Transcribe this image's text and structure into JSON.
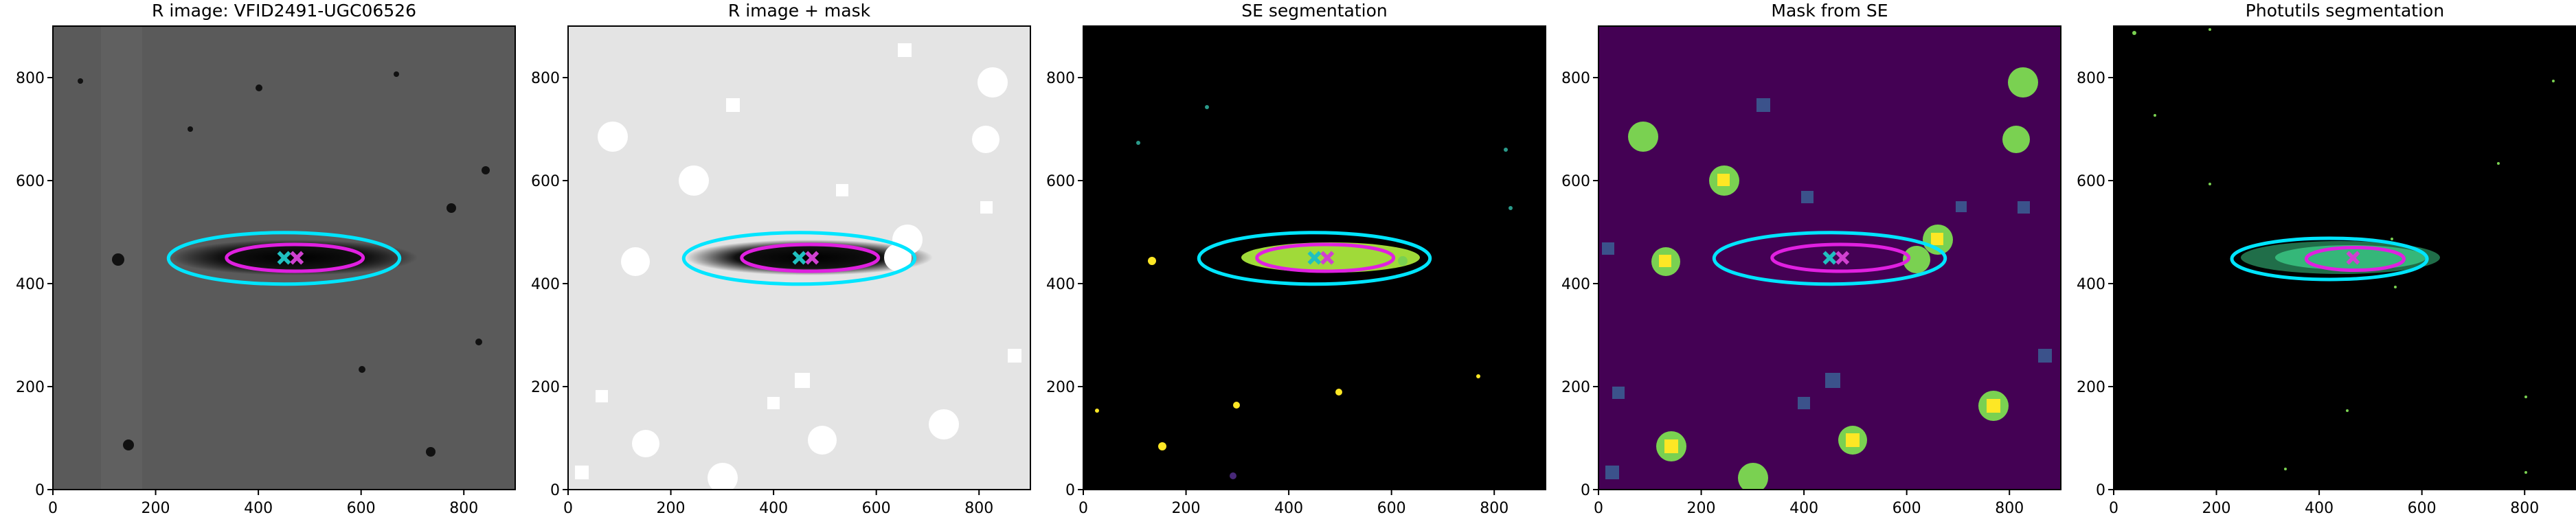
{
  "chart_data": [
    {
      "type": "image",
      "title": "R image: VFID2491-UGC06526",
      "background": "#5a5a5a",
      "xlim": [
        0,
        900
      ],
      "ylim": [
        0,
        900
      ],
      "xticks": [
        0,
        200,
        400,
        600,
        800
      ],
      "yticks": [
        0,
        200,
        400,
        600,
        800
      ],
      "ellipses": [
        {
          "color": "#00e5ff",
          "cx": 450,
          "cy": 449,
          "a": 225,
          "b": 50
        },
        {
          "color": "#e020e0",
          "cx": 471,
          "cy": 450,
          "a": 133,
          "b": 26
        }
      ],
      "markers": [
        {
          "color": "#20c0c0",
          "x": 450,
          "y": 450
        },
        {
          "color": "#d040d0",
          "x": 475,
          "y": 450
        }
      ]
    },
    {
      "type": "image",
      "title": "R image + mask",
      "background": "#e4e4e4",
      "xlim": [
        0,
        900
      ],
      "ylim": [
        0,
        900
      ],
      "xticks": [
        0,
        200,
        400,
        600,
        800
      ],
      "yticks": [
        0,
        200,
        400,
        600,
        800
      ],
      "ellipses": [
        {
          "color": "#00e5ff",
          "cx": 450,
          "cy": 449,
          "a": 225,
          "b": 50
        },
        {
          "color": "#e020e0",
          "cx": 471,
          "cy": 450,
          "a": 133,
          "b": 26
        }
      ],
      "markers": [
        {
          "color": "#20c0c0",
          "x": 450,
          "y": 450
        },
        {
          "color": "#d040d0",
          "x": 475,
          "y": 450
        }
      ]
    },
    {
      "type": "image",
      "title": "SE segmentation",
      "background": "#000000",
      "xlim": [
        0,
        900
      ],
      "ylim": [
        0,
        900
      ],
      "xticks": [
        0,
        200,
        400,
        600,
        800
      ],
      "yticks": [
        0,
        200,
        400,
        600,
        800
      ],
      "ellipses": [
        {
          "color": "#00e5ff",
          "cx": 450,
          "cy": 449,
          "a": 225,
          "b": 50
        },
        {
          "color": "#e020e0",
          "cx": 471,
          "cy": 450,
          "a": 133,
          "b": 26
        }
      ],
      "markers": [
        {
          "color": "#20c0c0",
          "x": 450,
          "y": 450
        },
        {
          "color": "#d040d0",
          "x": 475,
          "y": 450
        }
      ]
    },
    {
      "type": "image",
      "title": "Mask from SE",
      "background": "#440154",
      "xlim": [
        0,
        900
      ],
      "ylim": [
        0,
        900
      ],
      "xticks": [
        0,
        200,
        400,
        600,
        800
      ],
      "yticks": [
        0,
        200,
        400,
        600,
        800
      ],
      "ellipses": [
        {
          "color": "#00e5ff",
          "cx": 450,
          "cy": 449,
          "a": 225,
          "b": 50
        },
        {
          "color": "#e020e0",
          "cx": 471,
          "cy": 450,
          "a": 133,
          "b": 26
        }
      ],
      "markers": [
        {
          "color": "#20c0c0",
          "x": 450,
          "y": 450
        },
        {
          "color": "#d040d0",
          "x": 475,
          "y": 450
        }
      ]
    },
    {
      "type": "image",
      "title": "Photutils segmentation",
      "background": "#000000",
      "xlim": [
        0,
        900
      ],
      "ylim": [
        0,
        900
      ],
      "xticks": [
        0,
        200,
        400,
        600,
        800
      ],
      "yticks": [
        0,
        200,
        400,
        600,
        800
      ],
      "ellipses": [
        {
          "color": "#00e5ff",
          "cx": 420,
          "cy": 448,
          "a": 190,
          "b": 40
        },
        {
          "color": "#e020e0",
          "cx": 470,
          "cy": 448,
          "a": 95,
          "b": 22
        }
      ],
      "markers": [
        {
          "color": "#d040d0",
          "x": 466,
          "y": 450
        }
      ]
    }
  ]
}
